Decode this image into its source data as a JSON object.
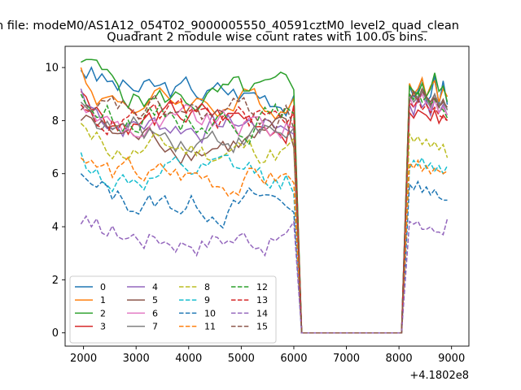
{
  "figure": {
    "suptitle": "n file: modeM0/AS1A12_054T02_9000005550_40591cztM0_level2_quad_clean",
    "offset_label": "+4.1802e8"
  },
  "chart_data": {
    "type": "line",
    "title": "Quadrant 2 module wise count rates with 100.0s bins.",
    "xlabel": "",
    "ylabel": "",
    "xlim": [
      1650,
      9330
    ],
    "ylim": [
      -0.5,
      10.8
    ],
    "xticks": [
      2000,
      3000,
      4000,
      5000,
      6000,
      7000,
      8000,
      9000
    ],
    "yticks": [
      0,
      2,
      4,
      6,
      8,
      10
    ],
    "grid": false,
    "legend_position": "lower-left",
    "legend_columns": 4,
    "gap_segments": [
      {
        "x": [
          5900,
          6000,
          6150,
          8050,
          8200
        ],
        "note": "drop-to-zero"
      }
    ],
    "series": [
      {
        "name": "0",
        "color": "#1f77b4",
        "style": "solid",
        "level": 9.0,
        "head": [
          9.9,
          9.6,
          10.0
        ],
        "tail": [
          9.3,
          8.9,
          9.1,
          9.6,
          8.7,
          8.9,
          9.7,
          8.6,
          9.5,
          8.6
        ]
      },
      {
        "name": "1",
        "color": "#ff7f0e",
        "style": "solid",
        "level": 8.7,
        "head": [
          10.0,
          9.4,
          9.1
        ],
        "tail": [
          9.4,
          9.0,
          9.2,
          9.6,
          8.9,
          9.3,
          9.5,
          8.7,
          9.2,
          8.9
        ]
      },
      {
        "name": "2",
        "color": "#2ca02c",
        "style": "solid",
        "level": 8.8,
        "head": [
          10.2,
          10.3,
          10.3
        ],
        "tail": [
          9.3,
          9.1,
          9.0,
          9.4,
          8.9,
          9.2,
          9.8,
          9.1,
          9.3,
          8.7
        ]
      },
      {
        "name": "3",
        "color": "#d62728",
        "style": "solid",
        "level": 8.0,
        "head": [
          9.1,
          8.9,
          8.4
        ],
        "tail": [
          8.3,
          8.1,
          8.4,
          8.3,
          8.2,
          8.0,
          8.4,
          7.9,
          8.2,
          8.0
        ]
      },
      {
        "name": "4",
        "color": "#9467bd",
        "style": "solid",
        "level": 7.9,
        "head": [
          9.2,
          8.6,
          8.5
        ],
        "tail": [
          8.6,
          8.2,
          8.9,
          8.5,
          8.7,
          8.2,
          8.8,
          8.3,
          8.6,
          8.2
        ]
      },
      {
        "name": "5",
        "color": "#8c564b",
        "style": "solid",
        "level": 7.2,
        "head": [
          8.0,
          8.2,
          8.1
        ],
        "tail": [
          8.7,
          9.1,
          8.8,
          9.2,
          8.9,
          8.7,
          9.0,
          8.5,
          8.8,
          8.4
        ]
      },
      {
        "name": "6",
        "color": "#e377c2",
        "style": "solid",
        "level": 7.7,
        "head": [
          8.6,
          8.3,
          8.4
        ],
        "tail": [
          8.9,
          8.5,
          8.7,
          9.0,
          8.6,
          8.4,
          8.8,
          8.3,
          8.5,
          8.2
        ]
      },
      {
        "name": "7",
        "color": "#7f7f7f",
        "style": "solid",
        "level": 7.5,
        "head": [
          8.7,
          8.5,
          8.3
        ],
        "tail": [
          9.0,
          8.7,
          8.9,
          9.1,
          8.8,
          8.5,
          9.0,
          8.6,
          8.7,
          8.4
        ]
      },
      {
        "name": "8",
        "color": "#bcbd22",
        "style": "dashed",
        "level": 6.9,
        "head": [
          7.9,
          7.7,
          7.3
        ],
        "tail": [
          7.5,
          7.2,
          7.4,
          7.1,
          7.3,
          7.0,
          7.2,
          6.9,
          7.1,
          6.6
        ]
      },
      {
        "name": "9",
        "color": "#17becf",
        "style": "dashed",
        "level": 5.8,
        "head": [
          6.8,
          6.2,
          6.0
        ],
        "tail": [
          6.2,
          6.5,
          6.3,
          6.6,
          6.2,
          6.4,
          6.1,
          6.3,
          6.0,
          6.3
        ]
      },
      {
        "name": "10",
        "color": "#1f77b4",
        "style": "dashed",
        "level": 4.9,
        "head": [
          6.0,
          5.8,
          5.6
        ],
        "tail": [
          5.6,
          5.4,
          5.7,
          5.3,
          5.5,
          5.2,
          5.4,
          5.1,
          5.0,
          5.0
        ]
      },
      {
        "name": "11",
        "color": "#ff7f0e",
        "style": "dashed",
        "level": 5.8,
        "head": [
          6.6,
          6.4,
          6.5
        ],
        "tail": [
          6.4,
          6.2,
          6.5,
          6.1,
          6.3,
          6.0,
          6.2,
          6.1,
          6.0,
          6.1
        ]
      },
      {
        "name": "12",
        "color": "#2ca02c",
        "style": "dashed",
        "level": 8.2,
        "head": [
          9.0,
          8.6,
          8.4
        ],
        "tail": [
          9.0,
          8.8,
          9.1,
          8.7,
          8.9,
          8.6,
          8.8,
          8.5,
          8.4,
          8.1
        ]
      },
      {
        "name": "13",
        "color": "#d62728",
        "style": "dashed",
        "level": 8.0,
        "head": [
          8.6,
          8.4,
          8.3
        ],
        "tail": [
          8.7,
          8.5,
          8.8,
          8.4,
          8.6,
          8.3,
          8.5,
          8.2,
          8.1,
          8.0
        ]
      },
      {
        "name": "14",
        "color": "#9467bd",
        "style": "dashed",
        "level": 3.7,
        "head": [
          4.1,
          4.4,
          4.0
        ],
        "tail": [
          4.2,
          4.1,
          4.2,
          3.9,
          3.9,
          4.0,
          3.8,
          3.8,
          3.7,
          4.3
        ]
      },
      {
        "name": "15",
        "color": "#8c564b",
        "style": "dashed",
        "level": 8.2,
        "head": [
          8.4,
          8.6,
          8.3
        ],
        "tail": [
          8.8,
          9.0,
          8.7,
          9.1,
          8.9,
          8.6,
          8.9,
          8.5,
          8.7,
          8.5
        ]
      }
    ]
  }
}
